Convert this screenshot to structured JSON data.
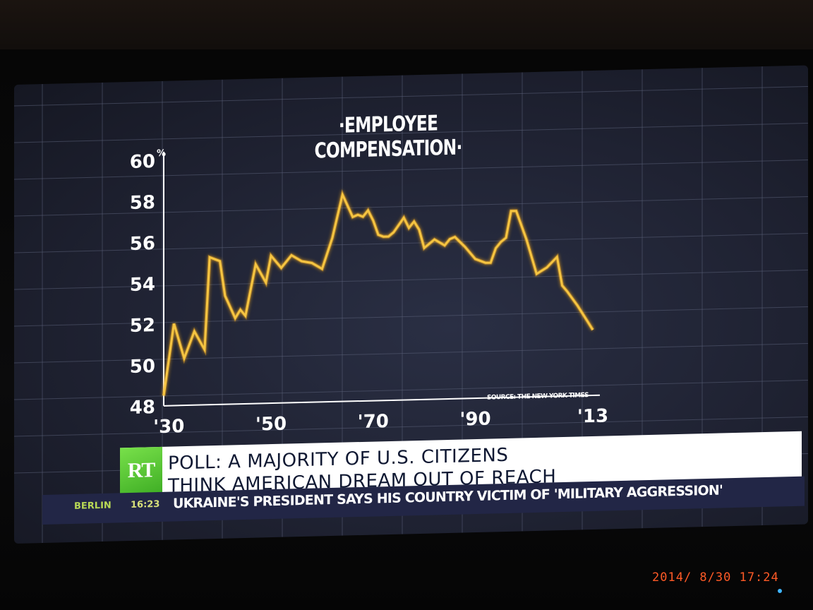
{
  "chart_title": "·EMPLOYEE COMPENSATION·",
  "chart_source": "SOURCE: THE NEW YORK TIMES",
  "chart_data": {
    "type": "line",
    "title": "·EMPLOYEE COMPENSATION·",
    "ylabel": "%",
    "ylim": [
      48,
      60
    ],
    "y_ticks": [
      "60",
      "58",
      "56",
      "54",
      "52",
      "50",
      "48"
    ],
    "y_unit_label": "%",
    "x_ticks": [
      "'30",
      "'50",
      "'70",
      "'90",
      "'13"
    ],
    "x_range": [
      1929,
      2013
    ],
    "grid": true,
    "series": [
      {
        "color": "#f6c542",
        "x": [
          1929,
          1931,
          1933,
          1935,
          1937,
          1938,
          1940,
          1941,
          1943,
          1944,
          1945,
          1947,
          1949,
          1950,
          1952,
          1954,
          1956,
          1958,
          1960,
          1962,
          1964,
          1966,
          1967,
          1968,
          1969,
          1970,
          1971,
          1972,
          1973,
          1974,
          1976,
          1977,
          1978,
          1979,
          1980,
          1982,
          1984,
          1985,
          1986,
          1988,
          1990,
          1992,
          1993,
          1994,
          1995,
          1996,
          1997,
          1998,
          2000,
          2002,
          2004,
          2006,
          2007,
          2008,
          2010,
          2012,
          2013
        ],
        "y": [
          48.5,
          52.0,
          50.3,
          51.6,
          50.7,
          55.2,
          55.0,
          53.3,
          52.2,
          52.6,
          52.3,
          54.8,
          53.9,
          55.2,
          54.6,
          55.2,
          54.9,
          54.8,
          54.5,
          56.0,
          58.1,
          57.0,
          57.1,
          57.0,
          57.3,
          56.8,
          56.1,
          56.0,
          56.0,
          56.2,
          56.9,
          56.4,
          56.7,
          56.3,
          55.4,
          55.8,
          55.5,
          55.8,
          55.9,
          55.4,
          54.8,
          54.6,
          54.6,
          55.3,
          55.6,
          55.8,
          57.1,
          57.1,
          55.7,
          54.0,
          54.3,
          54.8,
          53.4,
          53.1,
          52.4,
          51.6,
          51.2
        ]
      }
    ]
  },
  "news": {
    "logo": "RT",
    "headline_line1": "POLL: A MAJORITY OF U.S. CITIZENS",
    "headline_line2": "THINK AMERICAN DREAM OUT OF REACH"
  },
  "ticker": {
    "city": "BERLIN",
    "time": "16:23",
    "text": "UKRAINE'S PRESIDENT SAYS HIS COUNTRY VICTIM OF 'MILITARY AGGRESSION'"
  },
  "camera_timestamp": "2014/ 8/30 17:24"
}
